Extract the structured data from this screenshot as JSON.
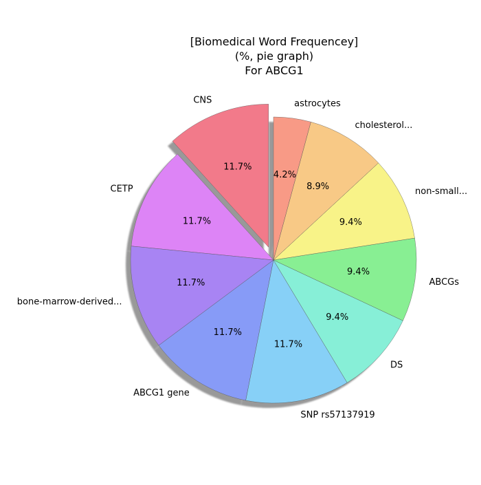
{
  "chart_data": {
    "type": "pie",
    "title_lines": [
      "[Biomedical Word Frequencey]",
      "(%, pie graph)",
      "For ABCG1"
    ],
    "slices": [
      {
        "label": "CNS",
        "value": 11.7,
        "pct_label": "11.7%",
        "color": "#f27a8a",
        "exploded": true
      },
      {
        "label": "CETP",
        "value": 11.7,
        "pct_label": "11.7%",
        "color": "#dd84f6"
      },
      {
        "label": "bone-marrow-derived...",
        "value": 11.7,
        "pct_label": "11.7%",
        "color": "#a884f3"
      },
      {
        "label": "ABCG1 gene",
        "value": 11.7,
        "pct_label": "11.7%",
        "color": "#879bf7"
      },
      {
        "label": "SNP rs57137919",
        "value": 11.7,
        "pct_label": "11.7%",
        "color": "#87d0f7"
      },
      {
        "label": "DS",
        "value": 9.4,
        "pct_label": "9.4%",
        "color": "#87efd7"
      },
      {
        "label": "ABCGs",
        "value": 9.4,
        "pct_label": "9.4%",
        "color": "#88ef93"
      },
      {
        "label": "non-small...",
        "value": 9.4,
        "pct_label": "9.4%",
        "color": "#f8f388"
      },
      {
        "label": "cholesterol...",
        "value": 8.9,
        "pct_label": "8.9%",
        "color": "#f8c986"
      },
      {
        "label": "astrocytes",
        "value": 4.2,
        "pct_label": "4.2%",
        "color": "#f89a86"
      }
    ],
    "start_angle_deg": 90,
    "direction": "counterclockwise",
    "shadow": true,
    "legend": "none"
  }
}
